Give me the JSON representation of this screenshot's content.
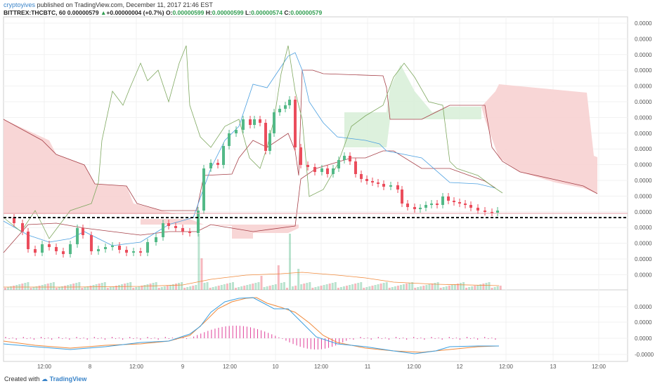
{
  "header": {
    "author": "cryptoyives",
    "published": "published on TradingView.com, December 11, 2017 21:46 EST",
    "symbol": "BITTREX:THCBTC, 60",
    "last": "0.00000579",
    "change_arrow": "▲",
    "change": "+0.00000004 (+0.7%)",
    "o_label": "O:",
    "o_value": "0.00000599",
    "h_label": "H:",
    "h_value": "0.00000599",
    "l_label": "L:",
    "l_value": "0.00000574",
    "c_label": "C:",
    "c_value": "0.00000579"
  },
  "footer": {
    "created_with": "Created with",
    "brand": "TradingView"
  },
  "colors": {
    "up": "#53b987",
    "down": "#eb4d5c",
    "cloud_up": "#d9efd9",
    "cloud_down": "#f7d2d2",
    "tenkan": "#4a9fe0",
    "kijun": "#a64048",
    "chikou": "#7fa860",
    "macd": "#3c9fe0",
    "signal": "#f08a3c",
    "hist": "#e0409a",
    "support": "#000000"
  },
  "chart_data": {
    "type": "candlestick",
    "x_tick_labels": [
      "12:00",
      "8",
      "12:00",
      "9",
      "12:00",
      "10",
      "12:00",
      "11",
      "12:00",
      "12",
      "12:00",
      "13",
      "12:00"
    ],
    "price_axis_labels": [
      "0.0000",
      "0.0000",
      "0.0000",
      "0.0000",
      "0.0000",
      "0.0000",
      "0.0000",
      "0.0000",
      "0.0000",
      "0.0000",
      "0.0000",
      "0.0000",
      "0.0000",
      "0.0000",
      "0.0000",
      "0.0000",
      "0.0000"
    ],
    "macd_axis_labels": [
      "0.0000",
      "0.0000",
      "0.0000",
      "-0.0000"
    ],
    "indicators": [
      "Ichimoku Cloud",
      "Volume",
      "MACD"
    ],
    "horizontal_line": "dashed support line",
    "candles_note": "hourly candles, values not printed on chart"
  }
}
